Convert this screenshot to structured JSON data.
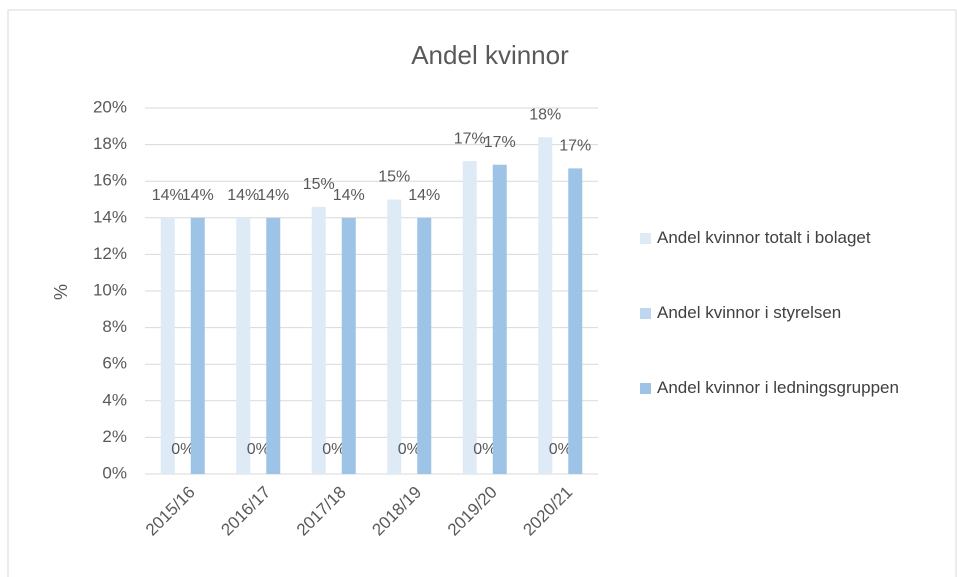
{
  "chart_data": {
    "type": "bar",
    "title": "Andel kvinnor",
    "y_label": "%",
    "categories": [
      "2015/16",
      "2016/17",
      "2017/18",
      "2018/19",
      "2019/20",
      "2020/21"
    ],
    "series": [
      {
        "name": "Andel kvinnor totalt i bolaget",
        "color": "#deebf7",
        "values": [
          14,
          14,
          14.6,
          15,
          17.1,
          18.4
        ],
        "value_labels": [
          "14%",
          "14%",
          "15%",
          "15%",
          "17%",
          "18%"
        ]
      },
      {
        "name": "Andel kvinnor i styrelsen",
        "color": "#bdd7ee",
        "values": [
          0,
          0,
          0,
          0,
          0,
          0
        ],
        "value_labels": [
          "0%",
          "0%",
          "0%",
          "0%",
          "0%",
          "0%"
        ]
      },
      {
        "name": "Andel kvinnor i ledningsgruppen",
        "color": "#9dc3e6",
        "values": [
          14,
          14,
          14,
          14,
          16.9,
          16.7
        ],
        "value_labels": [
          "14%",
          "14%",
          "14%",
          "14%",
          "17%",
          "17%"
        ]
      }
    ],
    "ylim": [
      0,
      20
    ],
    "yticks": [
      {
        "value": 0,
        "label": "0%"
      },
      {
        "value": 2,
        "label": "2%"
      },
      {
        "value": 4,
        "label": "4%"
      },
      {
        "value": 6,
        "label": "6%"
      },
      {
        "value": 8,
        "label": "8%"
      },
      {
        "value": 10,
        "label": "10%"
      },
      {
        "value": 12,
        "label": "12%"
      },
      {
        "value": 14,
        "label": "14%"
      },
      {
        "value": 16,
        "label": "16%"
      },
      {
        "value": 18,
        "label": "18%"
      },
      {
        "value": 20,
        "label": "20%"
      }
    ],
    "grid": true,
    "legend": "right"
  }
}
